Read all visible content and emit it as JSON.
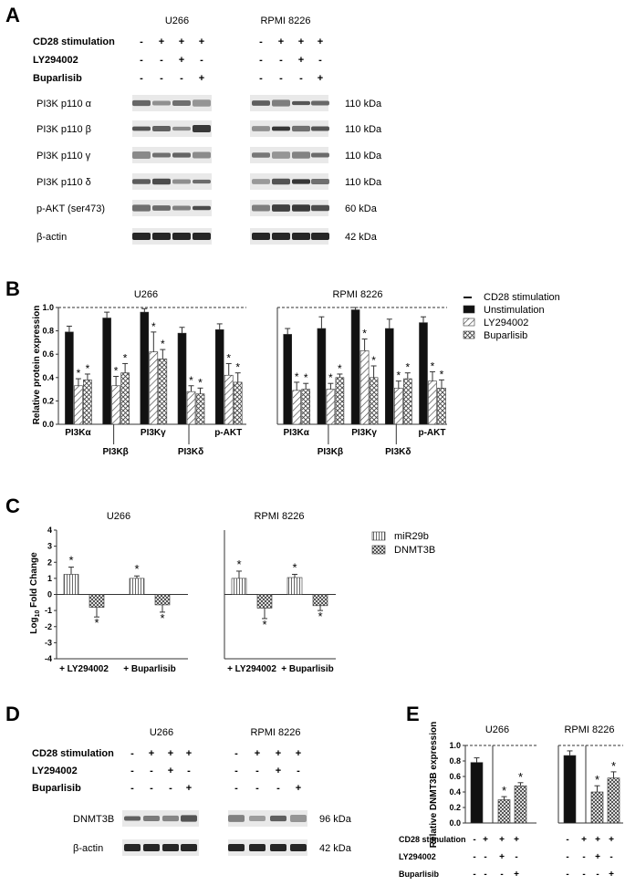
{
  "panels": [
    {
      "letter": "A"
    },
    {
      "letter": "B"
    },
    {
      "letter": "C"
    },
    {
      "letter": "D"
    },
    {
      "letter": "E"
    }
  ],
  "panelA": {
    "cell_lines": [
      "U266",
      "RPMI 8226"
    ],
    "conditions": [
      {
        "label": "CD28 stimulation",
        "u266": [
          "-",
          "+",
          "+",
          "+"
        ],
        "rpmi": [
          "-",
          "+",
          "+",
          "+"
        ]
      },
      {
        "label": "LY294002",
        "u266": [
          "-",
          "-",
          "+",
          "-"
        ],
        "rpmi": [
          "-",
          "-",
          "+",
          "-"
        ]
      },
      {
        "label": "Buparlisib",
        "u266": [
          "-",
          "-",
          "-",
          "+"
        ],
        "rpmi": [
          "-",
          "-",
          "-",
          "+"
        ]
      }
    ],
    "blots": [
      {
        "label": "PI3K p110 α",
        "kda": "110 kDa"
      },
      {
        "label": "PI3K p110 β",
        "kda": "110 kDa"
      },
      {
        "label": "PI3K p110 γ",
        "kda": "110 kDa"
      },
      {
        "label": "PI3K p110 δ",
        "kda": "110 kDa"
      },
      {
        "label": "p-AKT (ser473)",
        "kda": "60 kDa"
      },
      {
        "label": "β-actin",
        "kda": "42 kDa"
      }
    ]
  },
  "panelD": {
    "cell_lines": [
      "U266",
      "RPMI 8226"
    ],
    "conditions": [
      {
        "label": "CD28 stimulation",
        "u266": [
          "-",
          "+",
          "+",
          "+"
        ],
        "rpmi": [
          "-",
          "+",
          "+",
          "+"
        ]
      },
      {
        "label": "LY294002",
        "u266": [
          "-",
          "-",
          "+",
          "-"
        ],
        "rpmi": [
          "-",
          "-",
          "+",
          "-"
        ]
      },
      {
        "label": "Buparlisib",
        "u266": [
          "-",
          "-",
          "-",
          "+"
        ],
        "rpmi": [
          "-",
          "-",
          "-",
          "+"
        ]
      }
    ],
    "blots": [
      {
        "label": "DNMT3B",
        "kda": "96 kDa"
      },
      {
        "label": "β-actin",
        "kda": "42 kDa"
      }
    ]
  },
  "chart_data": [
    {
      "panel": "B",
      "type": "bar",
      "ylabel": "Relative protein expression",
      "ylim": [
        0,
        1.0
      ],
      "yticks": [
        "0.0",
        "0.2",
        "0.4",
        "0.6",
        "0.8",
        "1.0"
      ],
      "reference_line": 1.0,
      "legend": [
        "CD28 stimulation",
        "Unstimulation",
        "LY294002",
        "Buparlisib"
      ],
      "legend_placement": "right",
      "groups": [
        {
          "title": "U266",
          "categories": [
            "PI3Kα",
            "PI3Kβ",
            "PI3Kγ",
            "PI3Kδ",
            "p-AKT"
          ],
          "series": [
            {
              "name": "Unstimulation",
              "values": [
                0.79,
                0.91,
                0.96,
                0.78,
                0.81
              ],
              "errors": [
                0.05,
                0.05,
                0.03,
                0.05,
                0.05
              ]
            },
            {
              "name": "LY294002",
              "values": [
                0.33,
                0.33,
                0.62,
                0.28,
                0.42
              ],
              "errors": [
                0.06,
                0.08,
                0.17,
                0.05,
                0.1
              ]
            },
            {
              "name": "Buparlisib",
              "values": [
                0.38,
                0.44,
                0.56,
                0.26,
                0.36
              ],
              "errors": [
                0.05,
                0.08,
                0.08,
                0.05,
                0.08
              ]
            }
          ],
          "significance": [
            "*",
            "*",
            "*",
            "*",
            "*",
            "*",
            "*",
            "*",
            "*",
            "*"
          ]
        },
        {
          "title": "RPMI 8226",
          "categories": [
            "PI3Kα",
            "PI3Kβ",
            "PI3Kγ",
            "PI3Kδ",
            "p-AKT"
          ],
          "series": [
            {
              "name": "Unstimulation",
              "values": [
                0.77,
                0.82,
                0.98,
                0.82,
                0.87
              ],
              "errors": [
                0.05,
                0.1,
                0.02,
                0.08,
                0.05
              ]
            },
            {
              "name": "LY294002",
              "values": [
                0.29,
                0.3,
                0.63,
                0.31,
                0.37
              ],
              "errors": [
                0.07,
                0.05,
                0.1,
                0.06,
                0.08
              ]
            },
            {
              "name": "Buparlisib",
              "values": [
                0.3,
                0.4,
                0.4,
                0.39,
                0.31
              ],
              "errors": [
                0.05,
                0.03,
                0.1,
                0.05,
                0.07
              ]
            }
          ],
          "significance": [
            "*",
            "*",
            "*",
            "*",
            "*",
            "*",
            "*",
            "*",
            "*",
            "*"
          ]
        }
      ]
    },
    {
      "panel": "C",
      "type": "bar",
      "ylabel": "Log10 Fold Change",
      "ylim": [
        -4,
        4
      ],
      "yticks": [
        "-4",
        "-3",
        "-2",
        "-1",
        "0",
        "1",
        "2",
        "3",
        "4"
      ],
      "legend": [
        "miR29b",
        "DNMT3B"
      ],
      "legend_placement": "right",
      "groups": [
        {
          "title": "U266",
          "categories": [
            "+ LY294002",
            "+ Buparlisib"
          ],
          "series": [
            {
              "name": "miR29b",
              "values": [
                1.25,
                1.0
              ],
              "errors": [
                0.45,
                0.15
              ]
            },
            {
              "name": "DNMT3B",
              "values": [
                -0.8,
                -0.65
              ],
              "errors": [
                0.6,
                0.45
              ]
            }
          ],
          "significance": [
            "*",
            "*",
            "*",
            "*"
          ]
        },
        {
          "title": "RPMI 8226",
          "categories": [
            "+ LY294002",
            "+ Buparlisib"
          ],
          "series": [
            {
              "name": "miR29b",
              "values": [
                1.0,
                1.05
              ],
              "errors": [
                0.45,
                0.2
              ]
            },
            {
              "name": "DNMT3B",
              "values": [
                -0.85,
                -0.7
              ],
              "errors": [
                0.65,
                0.3
              ]
            }
          ],
          "significance": [
            "*",
            "*",
            "*",
            "*"
          ]
        }
      ]
    },
    {
      "panel": "E",
      "type": "bar",
      "ylabel": "Relative DNMT3B expression",
      "ylim": [
        0,
        1.0
      ],
      "yticks": [
        "0.0",
        "0.2",
        "0.4",
        "0.6",
        "0.8",
        "1.0"
      ],
      "reference_line": 1.0,
      "conditions": [
        {
          "label": "CD28 stimulation",
          "values": [
            "-",
            "+",
            "+",
            "+"
          ]
        },
        {
          "label": "LY294002",
          "values": [
            "-",
            "-",
            "+",
            "-"
          ]
        },
        {
          "label": "Buparlisib",
          "values": [
            "-",
            "-",
            "-",
            "+"
          ]
        }
      ],
      "groups": [
        {
          "title": "U266",
          "values": [
            0.78,
            0.3,
            0.48
          ],
          "errors": [
            0.06,
            0.04,
            0.04
          ],
          "significance": [
            "",
            "*",
            "*"
          ]
        },
        {
          "title": "RPMI 8226",
          "values": [
            0.87,
            0.4,
            0.58
          ],
          "errors": [
            0.06,
            0.08,
            0.08
          ],
          "significance": [
            "",
            "*",
            "*"
          ]
        }
      ]
    }
  ],
  "colors": {
    "bar_dark": "#111111",
    "text": "#222222",
    "band": "#1a1a1a"
  }
}
